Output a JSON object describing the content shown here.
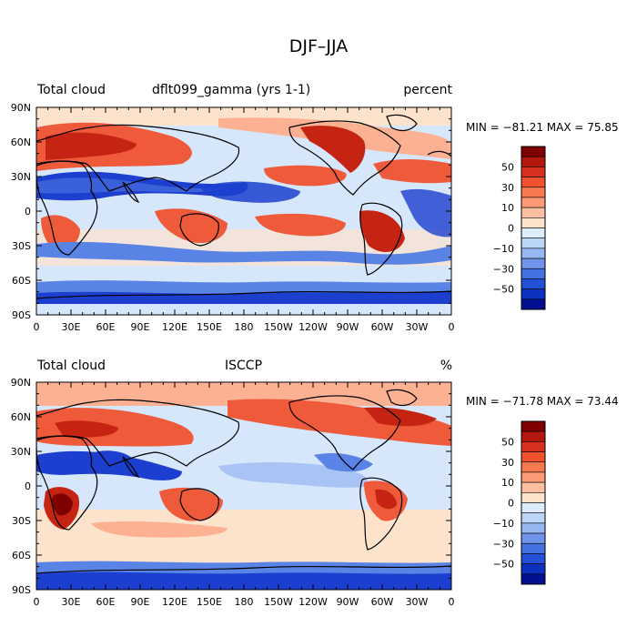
{
  "figure_title": "DJF–JJA",
  "x_tick_labels": [
    "0",
    "30E",
    "60E",
    "90E",
    "120E",
    "150E",
    "180",
    "150W",
    "120W",
    "90W",
    "60W",
    "30W",
    "0"
  ],
  "y_tick_labels": [
    "90N",
    "60N",
    "30N",
    "0",
    "30S",
    "60S",
    "90S"
  ],
  "panels": [
    {
      "left_label": "Total cloud",
      "center_label": "dflt099_gamma (yrs 1-1)",
      "right_label": "percent",
      "stats_text": "MIN = −81.21 MAX =  75.85",
      "min_value": -81.21,
      "max_value": 75.85
    },
    {
      "left_label": "Total cloud",
      "center_label": "ISCCP",
      "right_label": "%",
      "stats_text": "MIN = −71.78 MAX =  73.44",
      "min_value": -71.78,
      "max_value": 73.44
    }
  ],
  "colorbar": {
    "labels": [
      "50",
      "30",
      "10",
      "0",
      "−10",
      "−30",
      "−50"
    ],
    "colors": [
      "#7f0000",
      "#b2180d",
      "#d7301f",
      "#f0522f",
      "#f7794f",
      "#fb9a74",
      "#fcc0a0",
      "#fde3cc",
      "#ddecfb",
      "#bcd6f7",
      "#96b7f2",
      "#6f94ea",
      "#4671e0",
      "#2450d8",
      "#0e30bf",
      "#00108f"
    ]
  },
  "map_colors": {
    "strong_red": "#c62413",
    "red": "#ee5a3a",
    "light_red": "#fbb192",
    "pale_red": "#fde3cc",
    "pale_blue": "#d6e6fb",
    "light_blue": "#a9c4f4",
    "blue": "#5a83e6",
    "strong_blue": "#1c3fcf",
    "coastline": "#000000"
  }
}
